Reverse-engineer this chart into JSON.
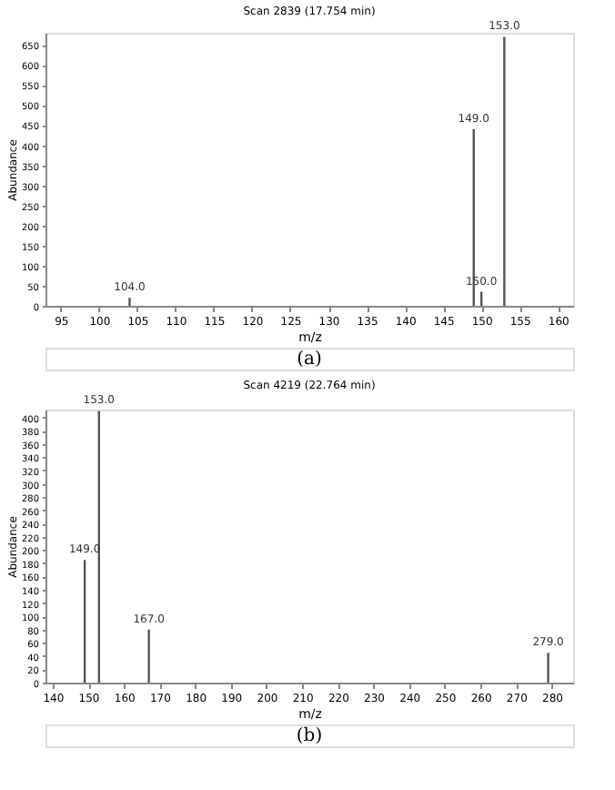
{
  "chart_data": [
    {
      "type": "bar",
      "title": "Scan 2839 (17.754 min)",
      "xlabel": "m/z",
      "ylabel": "Abundance",
      "x": [
        104,
        149,
        150,
        153
      ],
      "values": [
        20,
        440,
        35,
        670
      ],
      "color": "#555555",
      "xlim": [
        93,
        162
      ],
      "xticks": [
        95,
        100,
        105,
        110,
        115,
        120,
        125,
        130,
        135,
        140,
        145,
        150,
        155,
        160
      ],
      "ylim": [
        0,
        680
      ],
      "yticks": [
        0,
        50,
        100,
        150,
        200,
        250,
        300,
        350,
        400,
        450,
        500,
        550,
        600,
        650
      ],
      "grid": false,
      "annotations": [
        {
          "text": "104.0",
          "x": 104,
          "y": 20
        },
        {
          "text": "149.0",
          "x": 149,
          "y": 440
        },
        {
          "text": "150.0",
          "x": 150,
          "y": 35
        },
        {
          "text": "153.0",
          "x": 153,
          "y": 670
        },
        "(a)"
      ]
    },
    {
      "type": "bar",
      "title": "Scan 4219 (22.764 min)",
      "xlabel": "m/z",
      "ylabel": "Abundance",
      "x": [
        149,
        153,
        167,
        279
      ],
      "values": [
        185,
        410,
        80,
        45
      ],
      "color": "#555555",
      "xlim": [
        138,
        286
      ],
      "xticks": [
        140,
        150,
        160,
        170,
        180,
        190,
        200,
        210,
        220,
        230,
        240,
        250,
        260,
        270,
        280
      ],
      "ylim": [
        0,
        412
      ],
      "yticks": [
        0,
        20,
        40,
        60,
        80,
        100,
        120,
        140,
        160,
        180,
        200,
        220,
        240,
        260,
        280,
        300,
        320,
        340,
        360,
        380,
        400
      ],
      "grid": false,
      "annotations": [
        {
          "text": "149.0",
          "x": 149,
          "y": 185
        },
        {
          "text": "153.0",
          "x": 153,
          "y": 410
        },
        {
          "text": "167.0",
          "x": 167,
          "y": 80
        },
        {
          "text": "279.0",
          "x": 279,
          "y": 45
        },
        "(b)"
      ]
    }
  ]
}
